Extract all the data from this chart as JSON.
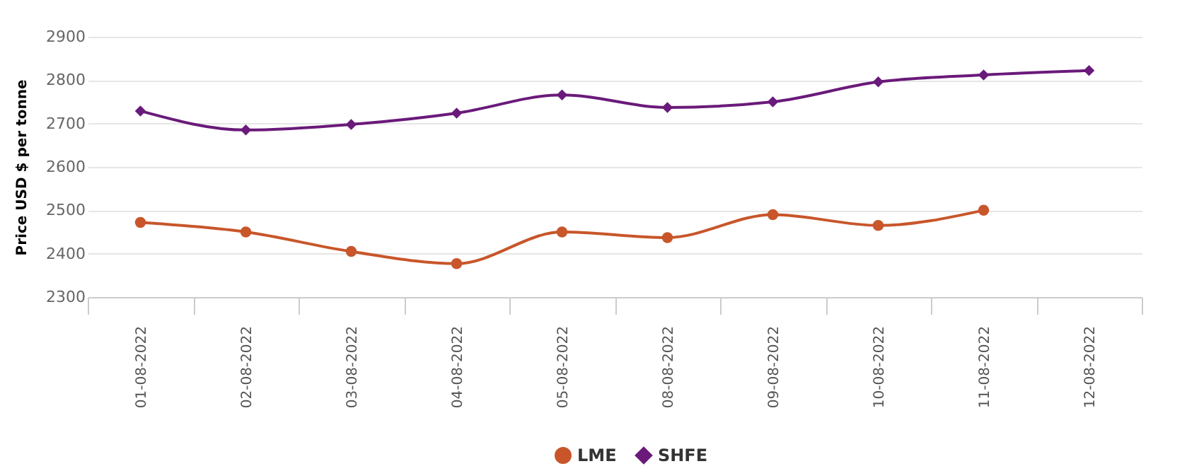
{
  "chart_data": {
    "type": "line",
    "ylabel": "Price USD $ per tonne",
    "categories": [
      "01-08-2022",
      "02-08-2022",
      "03-08-2022",
      "04-08-2022",
      "05-08-2022",
      "08-08-2022",
      "09-08-2022",
      "10-08-2022",
      "11-08-2022",
      "12-08-2022"
    ],
    "series": [
      {
        "name": "LME",
        "color": "#c8562a",
        "marker": "circle",
        "values": [
          2472,
          2450,
          2405,
          2377,
          2450,
          2437,
          2490,
          2465,
          2500,
          null
        ]
      },
      {
        "name": "SHFE",
        "color": "#6a1a7a",
        "marker": "diamond",
        "values": [
          2729,
          2685,
          2698,
          2724,
          2766,
          2737,
          2750,
          2796,
          2812,
          2822
        ]
      }
    ],
    "ylim": [
      2300,
      2900
    ],
    "yticks": [
      2300,
      2400,
      2500,
      2600,
      2700,
      2800,
      2900
    ],
    "grid": "y",
    "legend": "bottom",
    "line_style": "solid"
  }
}
